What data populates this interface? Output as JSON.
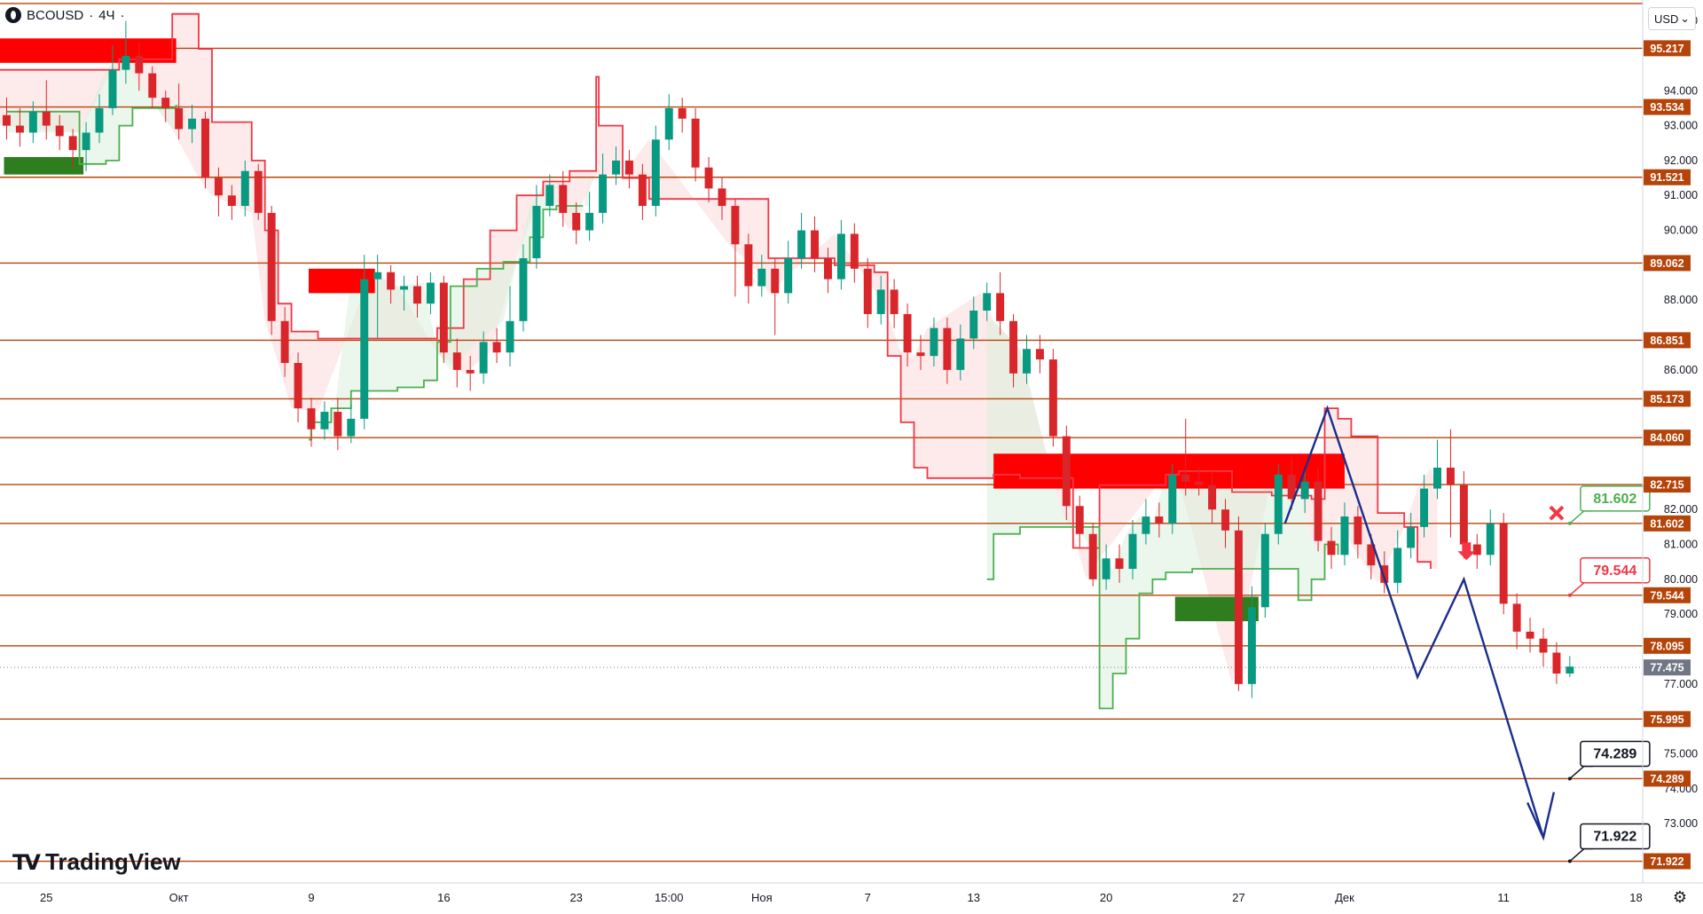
{
  "symbol": {
    "name": "BCOUSD",
    "separator": "·",
    "interval": "4Ч",
    "trailing": "·"
  },
  "currency": {
    "label": "USD",
    "chevron": "⌄"
  },
  "logo": {
    "mark": "TV",
    "text": "TradingView"
  },
  "colors": {
    "level_line": "#b5440a",
    "up": "#089981",
    "down": "#d9262b",
    "trail_red": "#f23645",
    "trail_green": "#4caf50",
    "forecast": "#1b2e8c",
    "zone_red": "#ff0000",
    "zone_green": "#2e7d1e"
  },
  "chart_data": {
    "type": "candlestick",
    "title": "",
    "ylim": [
      71.3,
      96.6
    ],
    "xlim": [
      0,
      124
    ],
    "price_ticks": [
      96.0,
      95.0,
      94.0,
      93.0,
      92.0,
      91.0,
      90.0,
      89.0,
      88.0,
      87.0,
      86.0,
      85.0,
      84.0,
      83.0,
      82.0,
      81.0,
      80.0,
      79.0,
      78.0,
      77.0,
      76.0,
      75.0,
      74.0,
      73.0,
      72.0
    ],
    "price_tick_labels": [
      "96.000",
      "",
      "94.000",
      "93.000",
      "92.000",
      "91.000",
      "90.000",
      "",
      "88.000",
      "",
      "86.000",
      "",
      "",
      "",
      "82.000",
      "81.000",
      "80.000",
      "79.000",
      "",
      "77.000",
      "",
      "75.000",
      "74.000",
      "73.000",
      ""
    ],
    "time_ticks": [
      {
        "x": 3.5,
        "label": "25"
      },
      {
        "x": 13.5,
        "label": "Окт"
      },
      {
        "x": 23.5,
        "label": "9"
      },
      {
        "x": 33.5,
        "label": "16"
      },
      {
        "x": 43.5,
        "label": "23"
      },
      {
        "x": 50.5,
        "label": "15:00"
      },
      {
        "x": 57.5,
        "label": "Ноя"
      },
      {
        "x": 65.5,
        "label": "7"
      },
      {
        "x": 73.5,
        "label": "13"
      },
      {
        "x": 83.5,
        "label": "20"
      },
      {
        "x": 93.5,
        "label": "27"
      },
      {
        "x": 101.5,
        "label": "Дек"
      },
      {
        "x": 113.5,
        "label": "11"
      },
      {
        "x": 123.5,
        "label": "18"
      }
    ],
    "levels": [
      96.5,
      95.217,
      93.534,
      91.521,
      89.062,
      86.851,
      85.173,
      84.06,
      82.715,
      81.602,
      79.544,
      78.095,
      75.995,
      74.289,
      71.922
    ],
    "level_labels": [
      "",
      "95.217",
      "93.534",
      "91.521",
      "89.062",
      "86.851",
      "85.173",
      "84.060",
      "82.715",
      "81.602",
      "79.544",
      "78.095",
      "75.995",
      "74.289",
      "71.922"
    ],
    "current_price": {
      "value": 77.475,
      "label": "77.475"
    },
    "zones": [
      {
        "color": "red",
        "x0": 0,
        "x1": 13.3,
        "y0": 94.8,
        "y1": 95.5
      },
      {
        "color": "green",
        "x0": 0.3,
        "x1": 6.3,
        "y0": 91.6,
        "y1": 92.1
      },
      {
        "color": "red",
        "x0": 23.3,
        "x1": 28.3,
        "y0": 88.2,
        "y1": 88.9
      },
      {
        "color": "red",
        "x0": 75.0,
        "x1": 101.5,
        "y0": 82.6,
        "y1": 83.6
      },
      {
        "color": "green",
        "x0": 88.7,
        "x1": 95.0,
        "y0": 78.8,
        "y1": 79.5
      }
    ],
    "trail_resistance": [
      [
        0,
        94.6
      ],
      [
        6,
        94.6
      ],
      [
        9,
        94.9
      ],
      [
        13,
        96.2
      ],
      [
        15,
        95.2
      ],
      [
        16,
        93.1
      ],
      [
        19,
        92.0
      ],
      [
        20,
        90.0
      ],
      [
        21,
        87.9
      ],
      [
        22,
        87.1
      ],
      [
        24,
        86.9
      ],
      [
        28,
        86.9
      ],
      [
        30,
        86.9
      ],
      [
        33,
        87.2
      ],
      [
        35,
        88.6
      ],
      [
        37,
        90.0
      ],
      [
        39,
        91.0
      ],
      [
        41,
        91.4
      ],
      [
        43,
        91.7
      ],
      [
        45,
        94.4
      ],
      [
        45.2,
        93.0
      ],
      [
        47,
        91.5
      ],
      [
        49,
        90.9
      ],
      [
        55,
        90.9
      ],
      [
        57,
        90.9
      ],
      [
        58,
        89.2
      ],
      [
        63,
        89.0
      ],
      [
        66,
        88.8
      ],
      [
        67,
        86.4
      ],
      [
        68,
        84.5
      ],
      [
        69,
        83.2
      ],
      [
        70,
        82.9
      ],
      [
        74,
        82.9
      ],
      [
        75,
        83.0
      ],
      [
        77,
        82.9
      ],
      [
        80,
        82.9
      ],
      [
        81,
        80.9
      ],
      [
        82,
        80.9
      ],
      [
        83,
        82.7
      ],
      [
        88,
        83.0
      ],
      [
        89,
        83.1
      ],
      [
        93,
        82.5
      ],
      [
        96,
        82.4
      ],
      [
        98,
        82.4
      ],
      [
        99,
        82.3
      ],
      [
        100,
        84.9
      ],
      [
        101,
        84.6
      ],
      [
        102,
        84.1
      ],
      [
        104,
        81.9
      ],
      [
        106,
        81.5
      ],
      [
        107,
        80.5
      ],
      [
        108,
        80.3
      ]
    ],
    "trail_support": [
      [
        0.5,
        93.4
      ],
      [
        6,
        91.9
      ],
      [
        8,
        92.0
      ],
      [
        9,
        93.0
      ],
      [
        10,
        93.5
      ],
      [
        13,
        93.5
      ],
      [
        13.3,
        93.6
      ],
      [
        23.3,
        84.0
      ],
      [
        23.5,
        84.5
      ],
      [
        25,
        84.9
      ],
      [
        26.5,
        85.4
      ],
      [
        28,
        85.4
      ],
      [
        30,
        85.5
      ],
      [
        32,
        85.7
      ],
      [
        33,
        86.8
      ],
      [
        34,
        88.4
      ],
      [
        36,
        88.9
      ],
      [
        38,
        89.1
      ],
      [
        40,
        89.8
      ],
      [
        41,
        90.6
      ],
      [
        42,
        90.7
      ],
      [
        44,
        90.7
      ],
      [
        74.5,
        80.0
      ],
      [
        75,
        81.3
      ],
      [
        77,
        81.5
      ],
      [
        80,
        81.5
      ],
      [
        83,
        76.3
      ],
      [
        84,
        77.3
      ],
      [
        85,
        78.3
      ],
      [
        86,
        79.6
      ],
      [
        87,
        80.0
      ],
      [
        88,
        80.2
      ],
      [
        90,
        80.3
      ],
      [
        98,
        79.4
      ],
      [
        99,
        80.0
      ],
      [
        100,
        81.0
      ],
      [
        101,
        80.7
      ]
    ],
    "forecast_path": [
      [
        97.0,
        81.6
      ],
      [
        100.2,
        84.9
      ],
      [
        107.0,
        77.2
      ],
      [
        110.5,
        80.0
      ],
      [
        116.5,
        72.6
      ]
    ],
    "forecast_arrowhead": [
      [
        115.3,
        73.6
      ],
      [
        116.5,
        72.6
      ],
      [
        117.3,
        73.9
      ]
    ],
    "annotations": [
      {
        "label": "81.602",
        "color": "#4caf50",
        "value": 81.602,
        "x": 118.5
      },
      {
        "label": "79.544",
        "color": "#f23645",
        "value": 79.544,
        "x": 118.5
      },
      {
        "label": "74.289",
        "color": "#131722",
        "value": 74.289,
        "x": 118.5
      },
      {
        "label": "71.922",
        "color": "#131722",
        "value": 71.922,
        "x": 118.5
      }
    ],
    "marks": [
      {
        "type": "cross",
        "x": 117.5,
        "value": 81.9,
        "color": "#f23645"
      },
      {
        "type": "down-arrow",
        "x": 110.7,
        "value": 80.6,
        "color": "#f23645"
      }
    ],
    "candles": [
      [
        93.3,
        93.0,
        93.8,
        92.6
      ],
      [
        93.0,
        92.8,
        93.5,
        92.4
      ],
      [
        92.8,
        93.4,
        93.7,
        92.5
      ],
      [
        93.4,
        93.0,
        94.3,
        92.6
      ],
      [
        93.0,
        92.7,
        93.3,
        92.3
      ],
      [
        92.7,
        92.3,
        92.9,
        91.8
      ],
      [
        92.3,
        92.8,
        93.1,
        91.7
      ],
      [
        92.8,
        93.5,
        93.9,
        92.5
      ],
      [
        93.5,
        94.6,
        95.3,
        93.3
      ],
      [
        94.6,
        95.0,
        96.0,
        94.2
      ],
      [
        95.0,
        94.5,
        95.4,
        94.0
      ],
      [
        94.5,
        93.8,
        94.7,
        93.5
      ],
      [
        93.8,
        93.5,
        94.0,
        93.1
      ],
      [
        93.5,
        92.9,
        94.2,
        92.6
      ],
      [
        92.9,
        93.2,
        93.6,
        92.5
      ],
      [
        93.2,
        91.5,
        93.4,
        91.2
      ],
      [
        91.5,
        91.0,
        91.8,
        90.4
      ],
      [
        91.0,
        90.7,
        91.3,
        90.3
      ],
      [
        90.7,
        91.7,
        92.0,
        90.4
      ],
      [
        91.7,
        90.5,
        91.9,
        90.3
      ],
      [
        90.5,
        87.4,
        90.7,
        87.0
      ],
      [
        87.4,
        86.2,
        87.8,
        85.8
      ],
      [
        86.2,
        84.9,
        86.5,
        84.5
      ],
      [
        84.9,
        84.3,
        85.2,
        83.8
      ],
      [
        84.3,
        84.8,
        85.1,
        84.0
      ],
      [
        84.8,
        84.1,
        85.2,
        83.7
      ],
      [
        84.1,
        84.6,
        85.0,
        83.9
      ],
      [
        84.6,
        88.6,
        89.3,
        84.3
      ],
      [
        88.6,
        88.8,
        89.3,
        86.9
      ],
      [
        88.8,
        88.3,
        89.0,
        87.9
      ],
      [
        88.3,
        88.4,
        88.7,
        87.7
      ],
      [
        88.4,
        87.9,
        88.7,
        87.5
      ],
      [
        87.9,
        88.5,
        88.8,
        87.6
      ],
      [
        88.5,
        86.5,
        88.7,
        86.2
      ],
      [
        86.5,
        86.0,
        86.9,
        85.5
      ],
      [
        86.0,
        85.9,
        86.4,
        85.4
      ],
      [
        85.9,
        86.8,
        87.1,
        85.6
      ],
      [
        86.8,
        86.5,
        87.2,
        86.2
      ],
      [
        86.5,
        87.4,
        88.4,
        86.1
      ],
      [
        87.4,
        89.2,
        89.6,
        87.1
      ],
      [
        89.2,
        90.7,
        91.3,
        88.9
      ],
      [
        90.7,
        91.3,
        91.6,
        90.4
      ],
      [
        91.3,
        90.5,
        91.7,
        90.1
      ],
      [
        90.5,
        90.0,
        90.8,
        89.6
      ],
      [
        90.0,
        90.5,
        91.1,
        89.7
      ],
      [
        90.5,
        91.6,
        92.2,
        90.2
      ],
      [
        91.6,
        92.0,
        92.4,
        91.3
      ],
      [
        92.0,
        91.6,
        92.3,
        91.2
      ],
      [
        91.6,
        90.7,
        91.9,
        90.3
      ],
      [
        90.7,
        92.6,
        93.0,
        90.4
      ],
      [
        92.6,
        93.5,
        93.9,
        92.3
      ],
      [
        93.5,
        93.2,
        93.8,
        92.8
      ],
      [
        93.2,
        91.8,
        93.5,
        91.4
      ],
      [
        91.8,
        91.2,
        92.1,
        90.8
      ],
      [
        91.2,
        90.7,
        91.5,
        90.3
      ],
      [
        90.7,
        89.6,
        90.9,
        88.1
      ],
      [
        89.6,
        88.4,
        89.9,
        87.9
      ],
      [
        88.4,
        88.9,
        89.3,
        88.1
      ],
      [
        88.9,
        88.2,
        89.2,
        87.0
      ],
      [
        88.2,
        89.2,
        89.7,
        87.9
      ],
      [
        89.2,
        90.0,
        90.5,
        88.9
      ],
      [
        90.0,
        89.2,
        90.4,
        88.8
      ],
      [
        89.2,
        88.6,
        89.5,
        88.2
      ],
      [
        88.6,
        89.9,
        90.3,
        88.3
      ],
      [
        89.9,
        88.9,
        90.2,
        88.5
      ],
      [
        88.9,
        87.6,
        89.2,
        87.2
      ],
      [
        87.6,
        88.3,
        88.7,
        87.3
      ],
      [
        88.3,
        87.6,
        88.6,
        87.2
      ],
      [
        87.6,
        86.5,
        87.9,
        86.1
      ],
      [
        86.5,
        86.4,
        87.0,
        86.0
      ],
      [
        86.4,
        87.2,
        87.5,
        86.1
      ],
      [
        87.2,
        86.0,
        87.5,
        85.6
      ],
      [
        86.0,
        86.9,
        87.3,
        85.7
      ],
      [
        86.9,
        87.7,
        88.1,
        86.6
      ],
      [
        87.7,
        88.2,
        88.5,
        87.4
      ],
      [
        88.2,
        87.4,
        88.8,
        87.0
      ],
      [
        87.4,
        85.9,
        87.6,
        85.5
      ],
      [
        85.9,
        86.6,
        87.0,
        85.6
      ],
      [
        86.6,
        86.3,
        87.0,
        85.9
      ],
      [
        86.3,
        84.1,
        86.6,
        83.8
      ],
      [
        84.1,
        82.1,
        84.4,
        81.7
      ],
      [
        82.1,
        81.3,
        82.4,
        80.9
      ],
      [
        81.3,
        80.0,
        81.6,
        79.8
      ],
      [
        80.0,
        80.6,
        81.0,
        79.7
      ],
      [
        80.6,
        80.3,
        81.0,
        79.9
      ],
      [
        80.3,
        81.3,
        81.7,
        80.0
      ],
      [
        81.3,
        81.8,
        82.3,
        81.0
      ],
      [
        81.8,
        81.6,
        82.2,
        81.2
      ],
      [
        81.6,
        83.0,
        83.3,
        81.3
      ],
      [
        83.0,
        82.8,
        84.6,
        82.4
      ],
      [
        82.8,
        82.7,
        83.2,
        82.4
      ],
      [
        82.7,
        82.0,
        83.1,
        81.6
      ],
      [
        82.0,
        81.4,
        82.3,
        80.9
      ],
      [
        81.4,
        77.0,
        81.8,
        76.8
      ],
      [
        77.0,
        79.2,
        79.8,
        76.6
      ],
      [
        79.2,
        81.3,
        81.6,
        78.9
      ],
      [
        81.3,
        83.0,
        83.3,
        81.0
      ],
      [
        83.0,
        82.3,
        83.5,
        82.0
      ],
      [
        82.3,
        82.8,
        83.1,
        81.9
      ],
      [
        82.8,
        81.1,
        83.2,
        80.8
      ],
      [
        81.1,
        80.7,
        81.5,
        80.3
      ],
      [
        80.7,
        81.8,
        82.2,
        80.4
      ],
      [
        81.8,
        81.0,
        82.1,
        80.6
      ],
      [
        81.0,
        80.4,
        81.3,
        80.0
      ],
      [
        80.4,
        79.9,
        80.8,
        79.6
      ],
      [
        79.9,
        80.9,
        81.4,
        79.6
      ],
      [
        80.9,
        81.5,
        81.9,
        80.6
      ],
      [
        81.5,
        82.6,
        83.0,
        81.2
      ],
      [
        82.6,
        83.2,
        84.0,
        82.3
      ],
      [
        83.2,
        82.7,
        84.3,
        81.2
      ],
      [
        82.7,
        81.0,
        83.1,
        80.6
      ],
      [
        81.0,
        80.7,
        81.3,
        80.3
      ],
      [
        80.7,
        81.6,
        82.0,
        80.4
      ],
      [
        81.6,
        79.3,
        81.9,
        79.0
      ],
      [
        79.3,
        78.5,
        79.6,
        78.0
      ],
      [
        78.5,
        78.3,
        78.9,
        77.9
      ],
      [
        78.3,
        77.9,
        78.6,
        77.5
      ],
      [
        77.9,
        77.3,
        78.2,
        77.0
      ],
      [
        77.3,
        77.5,
        77.8,
        77.2
      ]
    ]
  }
}
